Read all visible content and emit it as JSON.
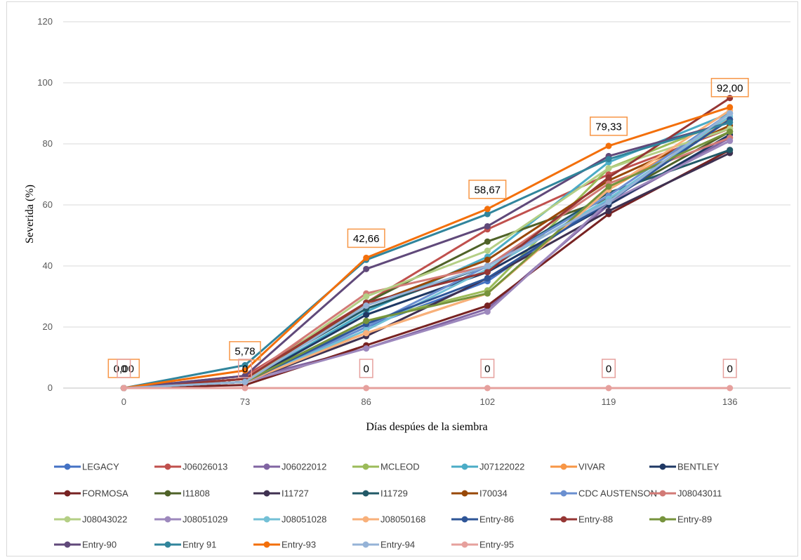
{
  "chart_data": {
    "type": "line",
    "title": "",
    "xlabel": "Días despúes de la siembra",
    "ylabel": "Severida (%)",
    "x": [
      "0",
      "73",
      "86",
      "102",
      "119",
      "136"
    ],
    "yticks": [
      "0",
      "20",
      "40",
      "60",
      "80",
      "100",
      "120"
    ],
    "ylim": [
      0,
      120
    ],
    "grid": "horizontal",
    "legend_position": "bottom",
    "series": [
      {
        "name": "LEGACY",
        "color": "#4472C4",
        "values": [
          0,
          2,
          20,
          35,
          62,
          88
        ]
      },
      {
        "name": "J06026013",
        "color": "#C0504D",
        "values": [
          0,
          4,
          28,
          52,
          70,
          85
        ]
      },
      {
        "name": "J06022012",
        "color": "#8064A2",
        "values": [
          0,
          3,
          13,
          26,
          60,
          82
        ]
      },
      {
        "name": "MCLEOD",
        "color": "#9BBB59",
        "values": [
          0,
          2,
          22,
          32,
          72,
          88
        ]
      },
      {
        "name": "J07122022",
        "color": "#4BACC6",
        "values": [
          0,
          2,
          25,
          43,
          74,
          90
        ]
      },
      {
        "name": "VIVAR",
        "color": "#F79646",
        "values": [
          0,
          3,
          18,
          31,
          65,
          88
        ]
      },
      {
        "name": "BENTLEY",
        "color": "#1F3864",
        "values": [
          0,
          2,
          24,
          38,
          60,
          83
        ]
      },
      {
        "name": "FORMOSA",
        "color": "#772222",
        "values": [
          0,
          1,
          14,
          27,
          57,
          78
        ]
      },
      {
        "name": "I11808",
        "color": "#4F6228",
        "values": [
          0,
          2,
          28,
          48,
          62,
          84
        ]
      },
      {
        "name": "I11727",
        "color": "#3F3151",
        "values": [
          0,
          2,
          17,
          36,
          58,
          77
        ]
      },
      {
        "name": "I11729",
        "color": "#215967",
        "values": [
          0,
          3,
          26,
          40,
          64,
          78
        ]
      },
      {
        "name": "I70034",
        "color": "#984807",
        "values": [
          0,
          3,
          27,
          42,
          68,
          86
        ]
      },
      {
        "name": "CDC AUSTENSON",
        "color": "#6A8FD0",
        "values": [
          0,
          2,
          20,
          40,
          63,
          90
        ]
      },
      {
        "name": "J08043011",
        "color": "#D27A76",
        "values": [
          0,
          3,
          31,
          40,
          67,
          82
        ]
      },
      {
        "name": "J08043022",
        "color": "#B4CF85",
        "values": [
          0,
          2,
          30,
          45,
          72,
          85
        ]
      },
      {
        "name": "J08051029",
        "color": "#9D88BD",
        "values": [
          0,
          2,
          13,
          25,
          61,
          81
        ]
      },
      {
        "name": "J08051028",
        "color": "#73C0D6",
        "values": [
          0,
          2,
          19,
          39,
          62,
          89
        ]
      },
      {
        "name": "J08050168",
        "color": "#F8B07A",
        "values": [
          0,
          2,
          18,
          31,
          65,
          91
        ]
      },
      {
        "name": "Entry-86",
        "color": "#2E5597",
        "values": [
          0,
          2,
          21,
          36,
          61,
          88
        ]
      },
      {
        "name": "Entry-88",
        "color": "#963634",
        "values": [
          0,
          3,
          28,
          38,
          69,
          95
        ]
      },
      {
        "name": "Entry-89",
        "color": "#76933C",
        "values": [
          0,
          2,
          22,
          31,
          66,
          84
        ]
      },
      {
        "name": "Entry-90",
        "color": "#60497A",
        "values": [
          0,
          4,
          39,
          53,
          76,
          87
        ]
      },
      {
        "name": "Entry 91",
        "color": "#31859C",
        "values": [
          0,
          7.5,
          42,
          57,
          75,
          87
        ]
      },
      {
        "name": "Entry-93",
        "color": "#F36F0A",
        "values": [
          0,
          5.78,
          42.66,
          58.67,
          79.33,
          92
        ]
      },
      {
        "name": "Entry-94",
        "color": "#95B3D7",
        "values": [
          0,
          2,
          27,
          40,
          61,
          90
        ]
      },
      {
        "name": "Entry-95",
        "color": "#E6A09D",
        "values": [
          0,
          0,
          0,
          0,
          0,
          0
        ]
      }
    ],
    "data_labels": [
      {
        "series": "Entry-93",
        "index": 0,
        "text": "0,00",
        "border": "#F79646"
      },
      {
        "series": "Entry-93",
        "index": 1,
        "text": "5,78",
        "border": "#F79646"
      },
      {
        "series": "Entry-93",
        "index": 2,
        "text": "42,66",
        "border": "#F79646"
      },
      {
        "series": "Entry-93",
        "index": 3,
        "text": "58,67",
        "border": "#F79646"
      },
      {
        "series": "Entry-93",
        "index": 4,
        "text": "79,33",
        "border": "#F79646"
      },
      {
        "series": "Entry-93",
        "index": 5,
        "text": "92,00",
        "border": "#F79646"
      },
      {
        "series": "Entry-95",
        "index": 0,
        "text": "0",
        "border": "#E6A09D"
      },
      {
        "series": "Entry-95",
        "index": 1,
        "text": "0",
        "border": "#E6A09D"
      },
      {
        "series": "Entry-95",
        "index": 2,
        "text": "0",
        "border": "#E6A09D"
      },
      {
        "series": "Entry-95",
        "index": 3,
        "text": "0",
        "border": "#E6A09D"
      },
      {
        "series": "Entry-95",
        "index": 4,
        "text": "0",
        "border": "#E6A09D"
      },
      {
        "series": "Entry-95",
        "index": 5,
        "text": "0",
        "border": "#E6A09D"
      }
    ]
  }
}
